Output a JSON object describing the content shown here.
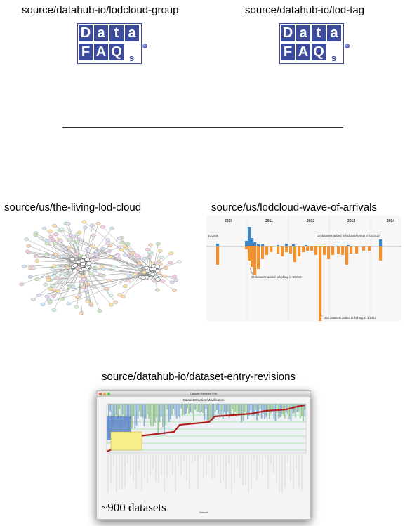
{
  "sources": {
    "lodcloud_group": "source/datahub-io/lodcloud-group",
    "lod_tag": "source/datahub-io/lod-tag",
    "living_lod_cloud": "source/us/the-living-lod-cloud",
    "wave_of_arrivals": "source/us/lodcloud-wave-of-arrivals",
    "dataset_entry_revisions": "source/datahub-io/dataset-entry-revisions"
  },
  "logo": {
    "row1": [
      "D",
      "a",
      "t",
      "a"
    ],
    "row2": [
      "F",
      "A",
      "Q"
    ],
    "suffix": "s",
    "color": "#3d4b9b"
  },
  "wave_chart": {
    "years": [
      "2010",
      "2011",
      "2012",
      "2013",
      "2014"
    ],
    "annotations": {
      "start": "10/2009",
      "peak_group": "15 datasets added to lodcloud-group in 10/2013",
      "tag_2010": "85 datasets added to lod-tag in 9/2010",
      "tag_2012": "262 datasets added to lod-tag in 3/2012"
    },
    "colors": {
      "group": "#3a86c8",
      "tag": "#f0922e"
    }
  },
  "revisions": {
    "window_title": "Dataset Revision Plot",
    "chart_title": "Dataset Creation/Modification",
    "xlabel": "Dataset",
    "caption": "~900 datasets"
  }
}
